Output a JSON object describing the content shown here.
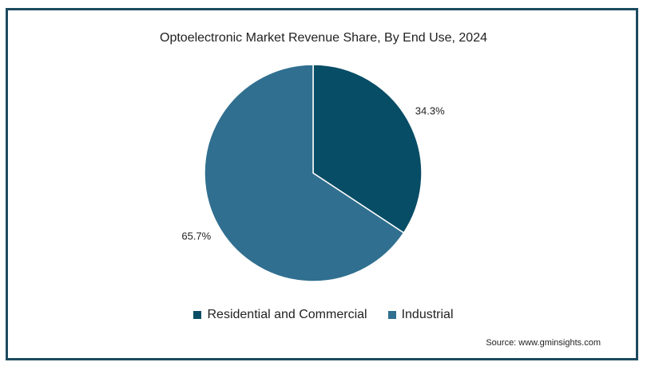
{
  "chart_data": {
    "type": "pie",
    "title": "Optoelectronic Market Revenue Share, By End Use, 2024",
    "categories": [
      "Residential and Commercial",
      "Industrial"
    ],
    "values": [
      34.3,
      65.7
    ],
    "labels": [
      "34.3%",
      "65.7%"
    ],
    "colors": [
      "#084d66",
      "#306f8f"
    ],
    "legend_position": "bottom"
  },
  "source": "Source: www.gminsights.com"
}
